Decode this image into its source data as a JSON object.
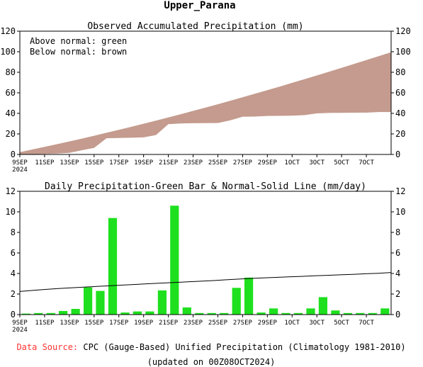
{
  "page_title": "Upper_Parana",
  "charts": [
    {
      "type": "area",
      "title": "Observed Accumulated Precipitation (mm)",
      "notes": [
        "Above normal: green",
        "Below normal: brown"
      ],
      "ylim": [
        0,
        120
      ],
      "yticks": [
        0,
        20,
        40,
        60,
        80,
        100,
        120
      ],
      "ytick_labels": [
        "0",
        "20",
        "40",
        "60",
        "80",
        "100",
        "120"
      ],
      "x_tick_labels": [
        "9SEP",
        "11SEP",
        "13SEP",
        "15SEP",
        "17SEP",
        "19SEP",
        "21SEP",
        "23SEP",
        "25SEP",
        "27SEP",
        "29SEP",
        "1OCT",
        "3OCT",
        "5OCT",
        "7OCT"
      ],
      "year_label": "2024",
      "dates": [
        "9SEP",
        "10SEP",
        "11SEP",
        "12SEP",
        "13SEP",
        "14SEP",
        "15SEP",
        "16SEP",
        "17SEP",
        "18SEP",
        "19SEP",
        "20SEP",
        "21SEP",
        "22SEP",
        "23SEP",
        "24SEP",
        "25SEP",
        "26SEP",
        "27SEP",
        "28SEP",
        "29SEP",
        "30SEP",
        "1OCT",
        "2OCT",
        "3OCT",
        "4OCT",
        "5OCT",
        "6OCT",
        "7OCT",
        "8OCT"
      ],
      "observed": [
        0.1,
        0.3,
        0.5,
        0.9,
        1.5,
        4.1,
        6.4,
        15.8,
        16.0,
        16.3,
        16.6,
        18.9,
        29.5,
        30.2,
        30.4,
        30.5,
        30.6,
        33.2,
        36.7,
        36.9,
        37.5,
        37.6,
        37.7,
        38.3,
        40.0,
        40.4,
        40.5,
        40.6,
        40.7,
        41.3
      ],
      "normal": [
        2.3,
        4.8,
        7.4,
        10.0,
        12.7,
        15.4,
        18.2,
        21.1,
        24.0,
        26.9,
        29.9,
        32.9,
        36.0,
        39.2,
        42.4,
        45.6,
        48.9,
        52.3,
        55.7,
        59.1,
        62.6,
        66.1,
        69.7,
        73.3,
        76.9,
        80.6,
        84.3,
        88.1,
        91.9,
        95.7
      ],
      "colors": {
        "above_normal": "#00ff00",
        "below_normal": "#c49b8e"
      }
    },
    {
      "type": "bar",
      "title": "Daily Precipitation-Green Bar & Normal-Solid Line (mm/day)",
      "ylim": [
        0,
        12
      ],
      "yticks": [
        0,
        2,
        4,
        6,
        8,
        10,
        12
      ],
      "ytick_labels": [
        "0",
        "2",
        "4",
        "6",
        "8",
        "10",
        "12"
      ],
      "x_tick_labels": [
        "9SEP",
        "11SEP",
        "13SEP",
        "15SEP",
        "17SEP",
        "19SEP",
        "21SEP",
        "23SEP",
        "25SEP",
        "27SEP",
        "29SEP",
        "1OCT",
        "3OCT",
        "5OCT",
        "7OCT"
      ],
      "year_label": "2024",
      "dates": [
        "9SEP",
        "10SEP",
        "11SEP",
        "12SEP",
        "13SEP",
        "14SEP",
        "15SEP",
        "16SEP",
        "17SEP",
        "18SEP",
        "19SEP",
        "20SEP",
        "21SEP",
        "22SEP",
        "23SEP",
        "24SEP",
        "25SEP",
        "26SEP",
        "27SEP",
        "28SEP",
        "29SEP",
        "30SEP",
        "1OCT",
        "2OCT",
        "3OCT",
        "4OCT",
        "5OCT",
        "6OCT",
        "7OCT",
        "8OCT"
      ],
      "daily": [
        0.1,
        0.15,
        0.15,
        0.35,
        0.55,
        2.65,
        2.3,
        9.4,
        0.2,
        0.3,
        0.3,
        2.35,
        10.6,
        0.7,
        0.15,
        0.15,
        0.15,
        2.6,
        3.6,
        0.2,
        0.6,
        0.15,
        0.15,
        0.6,
        1.7,
        0.4,
        0.15,
        0.15,
        0.15,
        0.6
      ],
      "normal_line": [
        2.25,
        2.35,
        2.45,
        2.53,
        2.6,
        2.67,
        2.74,
        2.8,
        2.87,
        2.93,
        3.0,
        3.06,
        3.12,
        3.18,
        3.24,
        3.3,
        3.38,
        3.45,
        3.52,
        3.57,
        3.62,
        3.67,
        3.72,
        3.77,
        3.82,
        3.87,
        3.92,
        3.97,
        4.02,
        4.1
      ],
      "colors": {
        "bar": "#1ee01e",
        "line": "#000000"
      }
    }
  ],
  "footer": {
    "source_label": "Data Source:",
    "source_text": "CPC (Gauge-Based) Unified Precipitation (Climatology 1981-2010)",
    "updated": "(updated on 00Z08OCT2024)",
    "source_color": "#ff3333"
  }
}
